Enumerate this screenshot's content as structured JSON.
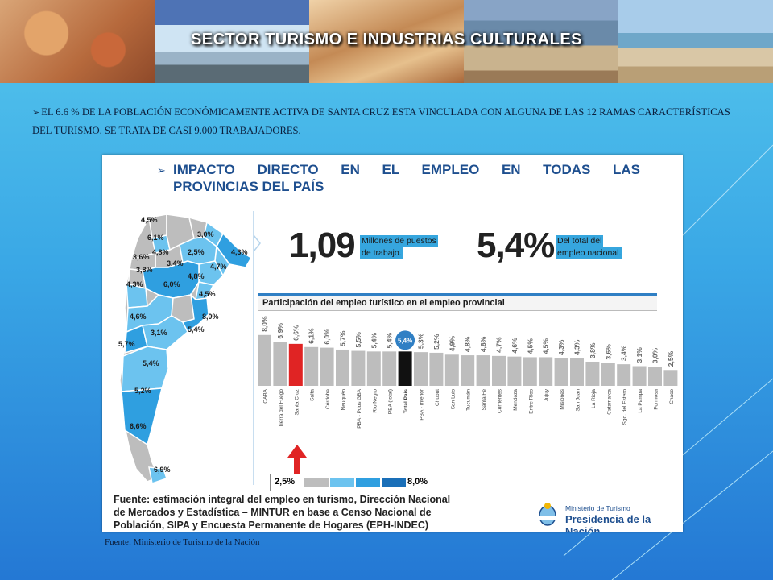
{
  "slide": {
    "title": "SECTOR TURISMO E INDUSTRIAS CULTURALES",
    "bullet": "EL 6.6 % DE LA POBLACIÓN ECONÓMICAMENTE ACTIVA DE SANTA CRUZ ESTA VINCULADA CON ALGUNA DE LAS 12 RAMAS CARACTERÍSTICAS DEL TURISMO. SE TRATA DE CASI 9.000 TRABAJADORES.",
    "footer": "Fuente: Ministerio de Turismo de la Nación"
  },
  "panel": {
    "title_line1": "IMPACTO DIRECTO EN EL EMPLEO EN TODAS LAS",
    "title_line2": "PROVINCIAS DEL PAÍS",
    "stat1_value": "1,09",
    "stat1_note_l1": "Millones de puestos",
    "stat1_note_l2": "de trabajo.",
    "stat2_value": "5,4%",
    "stat2_note_l1": "Del total del",
    "stat2_note_l2": "empleo nacional.",
    "source_l1": "Fuente: estimación integral del empleo en turismo, Dirección Nacional",
    "source_l2": "de Mercados y Estadística – MINTUR en base a Censo Nacional de",
    "source_l3": "Población, SIPA y Encuesta Permanente de Hogares (EPH-INDEC)",
    "logo_l1": "Ministerio de Turismo",
    "logo_l2": "Presidencia de la Nación",
    "legend_min": "2,5%",
    "legend_max": "8,0%"
  },
  "map": {
    "labels": [
      "4,5%",
      "6,1%",
      "3,0%",
      "4,8%",
      "2,5%",
      "3,6%",
      "3,4%",
      "4,3%",
      "3,8%",
      "4,7%",
      "4,8%",
      "6,0%",
      "4,3%",
      "4,5%",
      "4,6%",
      "8,0%",
      "3,1%",
      "5,4%",
      "5,7%",
      "5,4%",
      "5,2%",
      "6,6%",
      "6,9%"
    ]
  },
  "colors": {
    "grey": "#bdbdbd",
    "highlight": "#e02424",
    "total": "#111111",
    "light_blue": "#6cc3ef",
    "mid_blue": "#2f9fe0",
    "dark_blue": "#1a6fb8"
  },
  "chart_data": {
    "type": "bar",
    "title": "Participación del empleo turístico en el empleo provincial",
    "categories": [
      "CABA",
      "Tierra del Fuego",
      "Santa Cruz",
      "Salta",
      "Córdoba",
      "Neuquén",
      "PBA - Pdos GBA",
      "Río Negro",
      "PBA (total)",
      "Total País",
      "PBA - Interior",
      "Chubut",
      "San Luis",
      "Tucumán",
      "Santa Fe",
      "Corrientes",
      "Mendoza",
      "Entre Ríos",
      "Jujuy",
      "Misiones",
      "San Juan",
      "La Rioja",
      "Catamarca",
      "Sgo. del Estero",
      "La Pampa",
      "Formosa",
      "Chaco"
    ],
    "values": [
      8.0,
      6.9,
      6.6,
      6.1,
      6.0,
      5.7,
      5.5,
      5.4,
      5.4,
      5.4,
      5.3,
      5.2,
      4.9,
      4.8,
      4.8,
      4.7,
      4.6,
      4.5,
      4.5,
      4.3,
      4.3,
      3.8,
      3.6,
      3.4,
      3.1,
      3.0,
      2.5
    ],
    "value_labels": [
      "8,0%",
      "6,9%",
      "6,6%",
      "6,1%",
      "6,0%",
      "5,7%",
      "5,5%",
      "5,4%",
      "5,4%",
      "5,4%",
      "5,3%",
      "5,2%",
      "4,9%",
      "4,8%",
      "4,8%",
      "4,7%",
      "4,6%",
      "4,5%",
      "4,5%",
      "4,3%",
      "4,3%",
      "3,8%",
      "3,6%",
      "3,4%",
      "3,1%",
      "3,0%",
      "2,5%"
    ],
    "highlighted": "Santa Cruz",
    "total_category": "Total País"
  }
}
